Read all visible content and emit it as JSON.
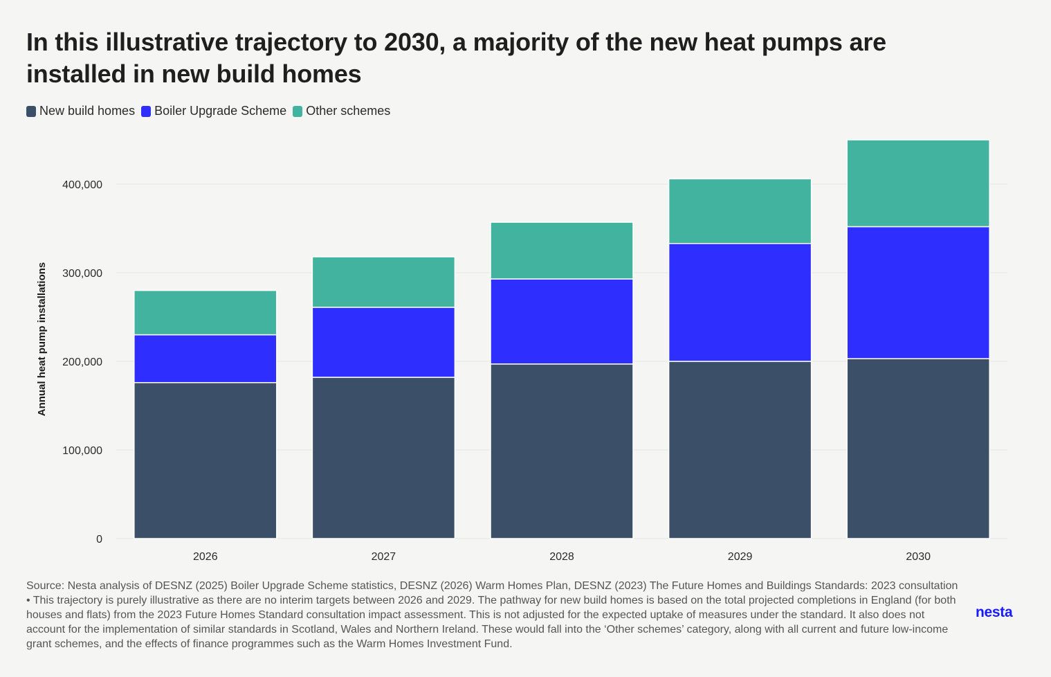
{
  "title": "In this illustrative trajectory to 2030, a majority of the new heat pumps are installed in new build homes",
  "legend": [
    {
      "label": "New build homes",
      "color": "#3b5068"
    },
    {
      "label": "Boiler Upgrade Scheme",
      "color": "#2e2eff"
    },
    {
      "label": "Other schemes",
      "color": "#41b39f"
    }
  ],
  "chart_data": {
    "type": "bar",
    "stacked": true,
    "categories": [
      "2026",
      "2027",
      "2028",
      "2029",
      "2030"
    ],
    "series": [
      {
        "name": "New build homes",
        "color": "#3b5068",
        "values": [
          176000,
          182000,
          197000,
          200000,
          203000
        ]
      },
      {
        "name": "Boiler Upgrade Scheme",
        "color": "#2e2eff",
        "values": [
          54000,
          79000,
          96000,
          133000,
          149000
        ]
      },
      {
        "name": "Other schemes",
        "color": "#41b39f",
        "values": [
          50000,
          57000,
          64000,
          73000,
          98000
        ]
      }
    ],
    "ylabel": "Annual heat pump installations",
    "xlabel": "",
    "ylim": [
      0,
      450000
    ],
    "yticks": [
      0,
      100000,
      200000,
      300000,
      400000
    ],
    "ytick_labels": [
      "0",
      "100,000",
      "200,000",
      "300,000",
      "400,000"
    ],
    "grid": true,
    "legend_position": "top-left"
  },
  "footer": "Source: Nesta analysis of DESNZ (2025) Boiler Upgrade Scheme statistics, DESNZ (2026) Warm Homes Plan, DESNZ (2023) The Future Homes and Buildings Standards: 2023 consultation • This trajectory is purely illustrative as there are no interim targets between 2026 and 2029. The pathway for new build homes is based on the total projected completions in England (for both houses and flats) from the 2023 Future Homes Standard consultation impact assessment. This is not adjusted for the expected uptake of measures under the standard. It also does not account for the implementation of similar standards in Scotland, Wales and Northern Ireland. These would fall into the ‘Other schemes’ category, along with all current and future low-income grant schemes, and the effects of finance programmes such as the Warm Homes Investment Fund.",
  "logo_text": "nesta"
}
